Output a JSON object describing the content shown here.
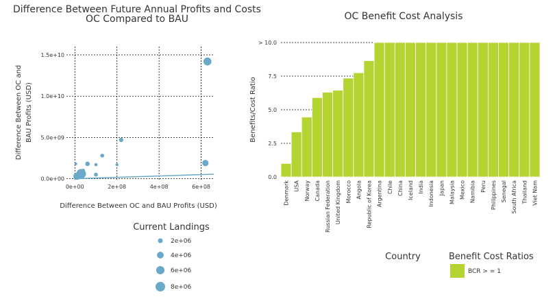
{
  "chart_data": [
    {
      "type": "scatter",
      "title_lines": [
        "Difference Between Future Annual Profits and Costs",
        "OC Compared to BAU"
      ],
      "xlabel": "Difference Between OC and BAU Profits (USD)",
      "ylabel_lines": [
        "Difference Between OC and",
        "BAU Profits (USD)"
      ],
      "xlim": [
        -40000000.0,
        660000000.0
      ],
      "ylim": [
        -200000000.0,
        16000000000.0
      ],
      "xticks": [
        {
          "v": 0,
          "label": "0e+00"
        },
        {
          "v": 200000000.0,
          "label": "2e+08"
        },
        {
          "v": 400000000.0,
          "label": "4e+08"
        },
        {
          "v": 600000000.0,
          "label": "6e+08"
        }
      ],
      "yticks": [
        {
          "v": 0,
          "label": "0.0e+00"
        },
        {
          "v": 5000000000.0,
          "label": "5.0e+09"
        },
        {
          "v": 10000000000.0,
          "label": "1.0e+10"
        },
        {
          "v": 15000000000.0,
          "label": "1.5e+10"
        }
      ],
      "grid": true,
      "point_color": "#6aa9c9",
      "line_color": "#6aa9c9",
      "line": [
        [
          0,
          0
        ],
        [
          660000000.0,
          550000000.0
        ]
      ],
      "points": [
        {
          "x": 630000000.0,
          "y": 14200000000.0,
          "size": 5500000.0
        },
        {
          "x": 220000000.0,
          "y": 4700000000.0,
          "size": 1600000.0
        },
        {
          "x": 130000000.0,
          "y": 2800000000.0,
          "size": 1300000.0
        },
        {
          "x": 620000000.0,
          "y": 1900000000.0,
          "size": 3500000.0
        },
        {
          "x": 60000000.0,
          "y": 1800000000.0,
          "size": 1800000.0
        },
        {
          "x": 100000000.0,
          "y": 1700000000.0,
          "size": 900000.0
        },
        {
          "x": 200000000.0,
          "y": 1700000000.0,
          "size": 800000.0
        },
        {
          "x": 5000000.0,
          "y": 1800000000.0,
          "size": 600000.0
        },
        {
          "x": 40000000.0,
          "y": 1000000000.0,
          "size": 1000000.0
        },
        {
          "x": 100000000.0,
          "y": 500000000.0,
          "size": 1300000.0
        },
        {
          "x": 30000000.0,
          "y": 600000000.0,
          "size": 8000000.0
        },
        {
          "x": 10000000.0,
          "y": 300000000.0,
          "size": 4500000.0
        },
        {
          "x": 15000000.0,
          "y": 250000000.0,
          "size": 2000000.0
        },
        {
          "x": 2000000.0,
          "y": 50000000.0,
          "size": 800000.0
        }
      ]
    },
    {
      "type": "bar",
      "title": "OC Benefit Cost Analysis",
      "xlabel": "Country",
      "ylabel": "Benefits/Cost Ratio",
      "ylim": [
        0,
        10
      ],
      "yticks": [
        {
          "v": 0,
          "label": "0.0"
        },
        {
          "v": 2.5,
          "label": "2.5"
        },
        {
          "v": 5,
          "label": "5.0"
        },
        {
          "v": 7.5,
          "label": "7.5"
        },
        {
          "v": 10,
          "label": "> 10.0"
        }
      ],
      "grid": true,
      "bar_color": "#b4d432",
      "categories": [
        "Denmark",
        "USA",
        "Norway",
        "Canada",
        "Russian Federation",
        "United Kingdom",
        "Morocco",
        "Angola",
        "Republic of Korea",
        "Argentina",
        "Chile",
        "China",
        "Iceland",
        "India",
        "Indonesia",
        "Japan",
        "Malaysia",
        "Mexico",
        "Namibia",
        "Peru",
        "Philippines",
        "Senegal",
        "South Africa",
        "Thailand",
        "Viet Nam"
      ],
      "values": [
        1.0,
        3.35,
        4.45,
        5.9,
        6.3,
        6.45,
        7.35,
        7.75,
        8.65,
        10,
        10,
        10,
        10,
        10,
        10,
        10,
        10,
        10,
        10,
        10,
        10,
        10,
        10,
        10,
        10
      ]
    }
  ],
  "size_legend": {
    "title": "Current Landings",
    "items": [
      {
        "value": 2000000.0,
        "label": "2e+06"
      },
      {
        "value": 4000000.0,
        "label": "4e+06"
      },
      {
        "value": 6000000.0,
        "label": "6e+06"
      },
      {
        "value": 8000000.0,
        "label": "8e+06"
      }
    ]
  },
  "bcr_legend": {
    "title": "Benefit Cost Ratios",
    "label": "BCR > = 1",
    "color": "#b4d432"
  }
}
